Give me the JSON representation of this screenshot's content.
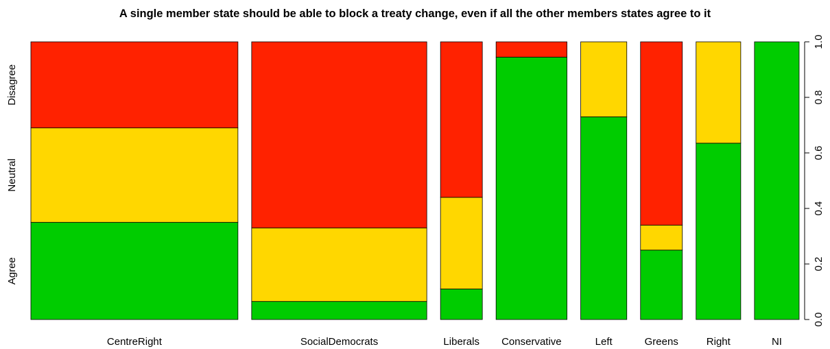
{
  "chart_data": {
    "type": "mosaic",
    "title": "A single member state should be able to block a treaty change, even if all the other members states agree to it",
    "categories": [
      "CentreRight",
      "SocialDemocrats",
      "Liberals",
      "Conservative",
      "Left",
      "Greens",
      "Right",
      "NI"
    ],
    "column_weights": [
      0.292,
      0.247,
      0.059,
      0.1,
      0.065,
      0.059,
      0.063,
      0.063
    ],
    "levels": [
      "Agree",
      "Neutral",
      "Disagree"
    ],
    "series": [
      {
        "name": "Agree",
        "color": "#00cc00",
        "values": [
          0.35,
          0.065,
          0.11,
          0.945,
          0.73,
          0.25,
          0.635,
          1.0
        ]
      },
      {
        "name": "Neutral",
        "color": "#ffd700",
        "values": [
          0.34,
          0.265,
          0.33,
          0.0,
          0.27,
          0.09,
          0.365,
          0.0
        ]
      },
      {
        "name": "Disagree",
        "color": "#ff2200",
        "values": [
          0.31,
          0.67,
          0.56,
          0.055,
          0.0,
          0.66,
          0.0,
          0.0
        ]
      }
    ],
    "y_axis": {
      "side": "right",
      "ylim": [
        0,
        1
      ],
      "ticks": [
        "0.0",
        "0.2",
        "0.4",
        "0.6",
        "0.8",
        "1.0"
      ]
    }
  }
}
